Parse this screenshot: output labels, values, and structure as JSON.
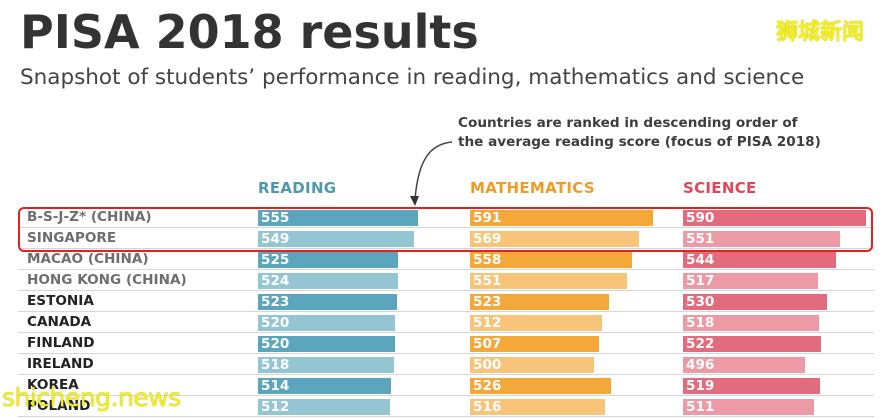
{
  "header": {
    "title": "PISA 2018 results",
    "subtitle": "Snapshot of students’ performance in reading, mathematics and science"
  },
  "annotation": {
    "line1": "Countries are ranked in descending order of",
    "line2": "the average reading score (focus of PISA 2018)"
  },
  "watermarks": {
    "top_right": "狮城新闻",
    "bottom_left": "shicheng.news"
  },
  "colors": {
    "reading_dark": "#5ba6bd",
    "reading_light": "#93c5d3",
    "math_dark": "#f4a83a",
    "math_light": "#f7c47a",
    "science_dark": "#e26c7d",
    "science_light": "#ec9aa6",
    "reading_header": "#4f97ad",
    "math_header": "#f29a26",
    "science_header": "#e2455a",
    "highlight_box": "#e3231b"
  },
  "columns": [
    {
      "label": "READING"
    },
    {
      "label": "MATHEMATICS"
    },
    {
      "label": "SCIENCE"
    }
  ],
  "rows": [
    {
      "country": "B-S-J-Z* (CHINA)",
      "reading": 555,
      "math": 591,
      "science": 590,
      "label_color": "#6e6e6e"
    },
    {
      "country": "SINGAPORE",
      "reading": 549,
      "math": 569,
      "science": 551,
      "label_color": "#6e6e6e"
    },
    {
      "country": "MACAO (CHINA)",
      "reading": 525,
      "math": 558,
      "science": 544,
      "label_color": "#6e6e6e"
    },
    {
      "country": "HONG KONG (CHINA)",
      "reading": 524,
      "math": 551,
      "science": 517,
      "label_color": "#6e6e6e"
    },
    {
      "country": "ESTONIA",
      "reading": 523,
      "math": 523,
      "science": 530,
      "label_color": "#222222"
    },
    {
      "country": "CANADA",
      "reading": 520,
      "math": 512,
      "science": 518,
      "label_color": "#222222"
    },
    {
      "country": "FINLAND",
      "reading": 520,
      "math": 507,
      "science": 522,
      "label_color": "#222222"
    },
    {
      "country": "IRELAND",
      "reading": 518,
      "math": 500,
      "science": 496,
      "label_color": "#222222"
    },
    {
      "country": "KOREA",
      "reading": 514,
      "math": 526,
      "science": 519,
      "label_color": "#222222"
    },
    {
      "country": "POLAND",
      "reading": 512,
      "math": 516,
      "science": 511,
      "label_color": "#222222"
    }
  ],
  "chart_data": {
    "type": "bar",
    "orientation": "horizontal",
    "title": "PISA 2018 results",
    "subtitle": "Snapshot of students’ performance in reading, mathematics and science",
    "annotation": "Countries are ranked in descending order of the average reading score (focus of PISA 2018)",
    "categories": [
      "B-S-J-Z* (CHINA)",
      "SINGAPORE",
      "MACAO (CHINA)",
      "HONG KONG (CHINA)",
      "ESTONIA",
      "CANADA",
      "FINLAND",
      "IRELAND",
      "KOREA",
      "POLAND"
    ],
    "series": [
      {
        "name": "READING",
        "values": [
          555,
          549,
          525,
          524,
          523,
          520,
          520,
          518,
          514,
          512
        ]
      },
      {
        "name": "MATHEMATICS",
        "values": [
          591,
          569,
          558,
          551,
          523,
          512,
          507,
          500,
          526,
          516
        ]
      },
      {
        "name": "SCIENCE",
        "values": [
          590,
          551,
          544,
          517,
          530,
          518,
          522,
          496,
          519,
          511
        ]
      }
    ],
    "highlighted_categories": [
      "B-S-J-Z* (CHINA)",
      "SINGAPORE"
    ],
    "grid": false,
    "legend": "column headers"
  }
}
